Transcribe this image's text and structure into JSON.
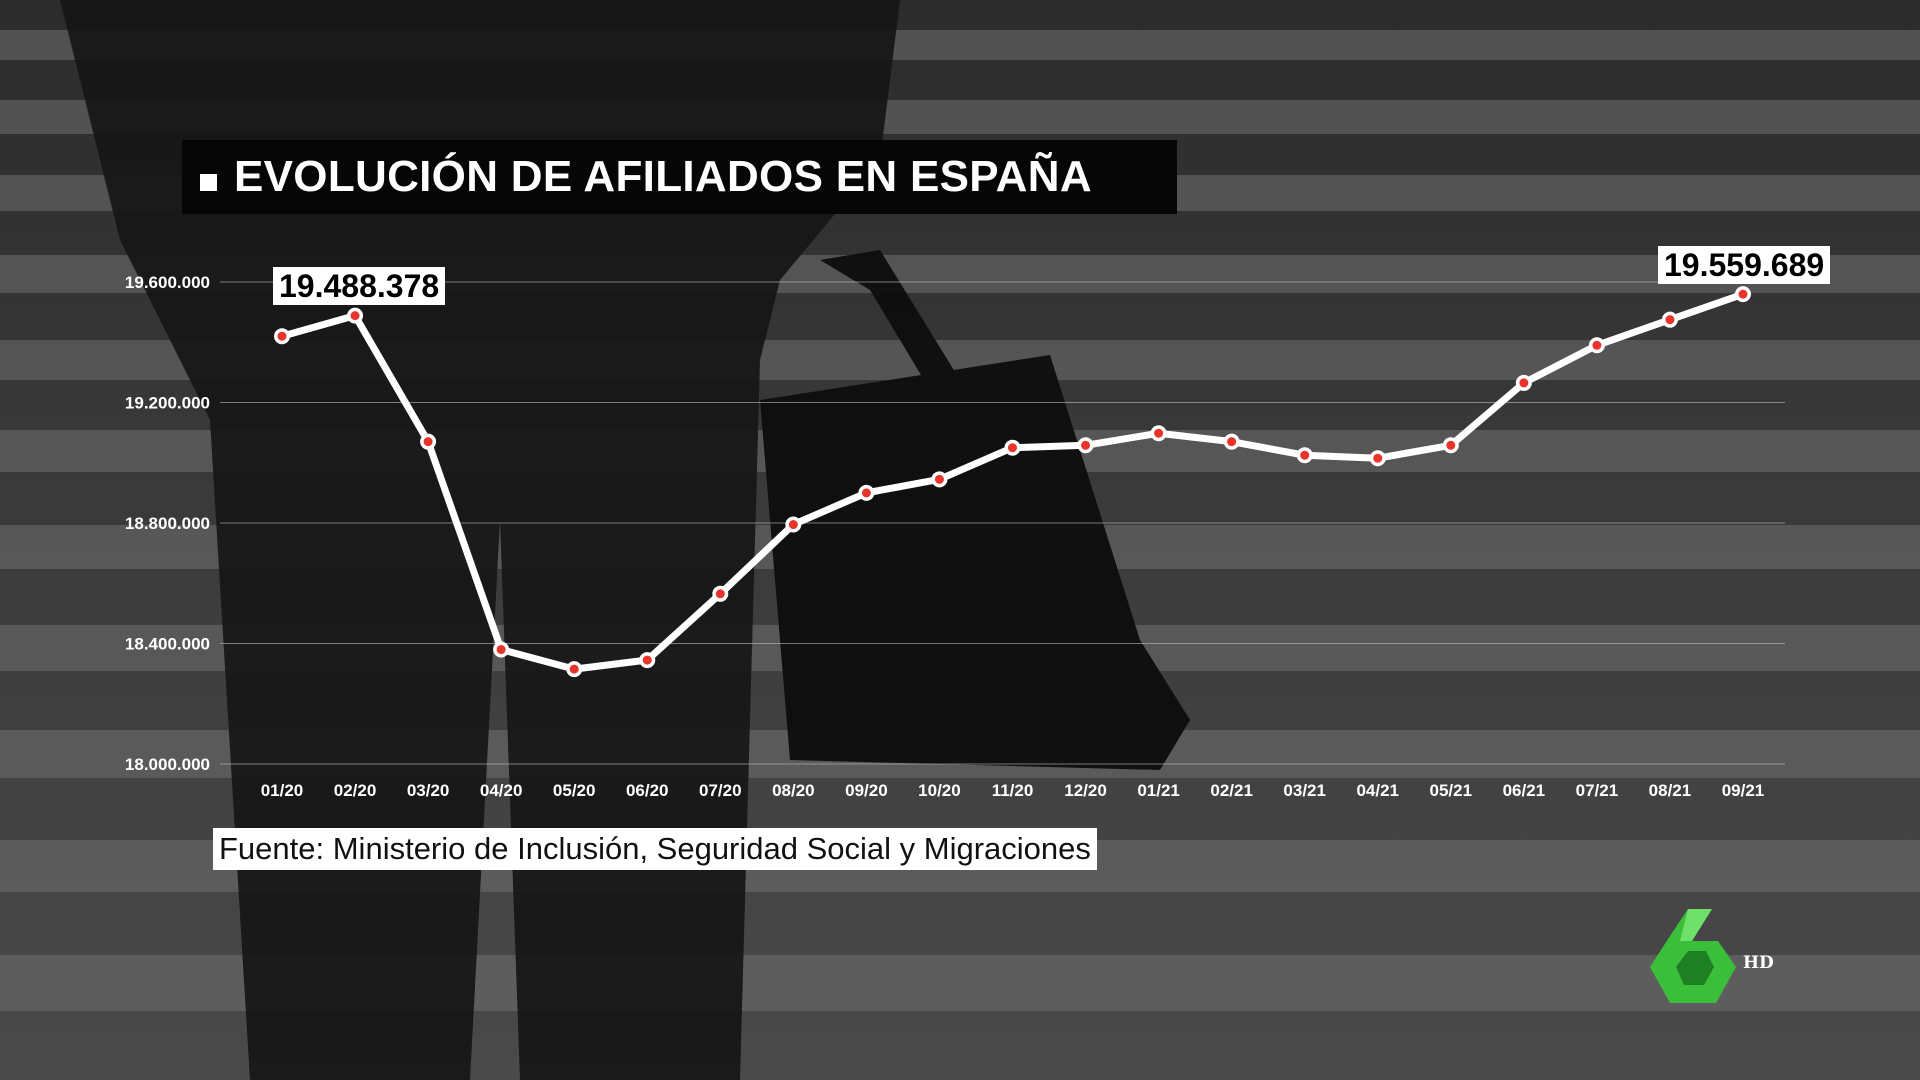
{
  "title": "EVOLUCIÓN DE AFILIADOS EN ESPAÑA",
  "source": "Fuente: Ministerio de Inclusión, Seguridad Social y Migraciones",
  "callouts": {
    "first": "19.488.378",
    "last": "19.559.689"
  },
  "channel": {
    "logo_icon": "lasexta-logo-icon",
    "hd_label": "HD",
    "logo_color": "#3bbf3b"
  },
  "colors": {
    "line": "#ffffff",
    "marker": "#e8342a",
    "title_bg": "#060606"
  },
  "chart_data": {
    "type": "line",
    "title": "EVOLUCIÓN DE AFILIADOS EN ESPAÑA",
    "categories": [
      "01/20",
      "02/20",
      "03/20",
      "04/20",
      "05/20",
      "06/20",
      "07/20",
      "08/20",
      "09/20",
      "10/20",
      "11/20",
      "12/20",
      "01/21",
      "02/21",
      "03/21",
      "04/21",
      "05/21",
      "06/21",
      "07/21",
      "08/21",
      "09/21"
    ],
    "values": [
      19420000,
      19488378,
      19070000,
      18380000,
      18315000,
      18345000,
      18565000,
      18795000,
      18900000,
      18945000,
      19050000,
      19058000,
      19098000,
      19070000,
      19025000,
      19015000,
      19058000,
      19265000,
      19390000,
      19475000,
      19559689
    ],
    "ylim": [
      18000000,
      19600000
    ],
    "yticks": [
      18000000,
      18400000,
      18800000,
      19200000,
      19600000
    ],
    "ytick_labels": [
      "18.000.000",
      "18.400.000",
      "18.800.000",
      "19.200.000",
      "19.600.000"
    ],
    "xlabel": "",
    "ylabel": "",
    "grid": true,
    "legend": "none"
  }
}
